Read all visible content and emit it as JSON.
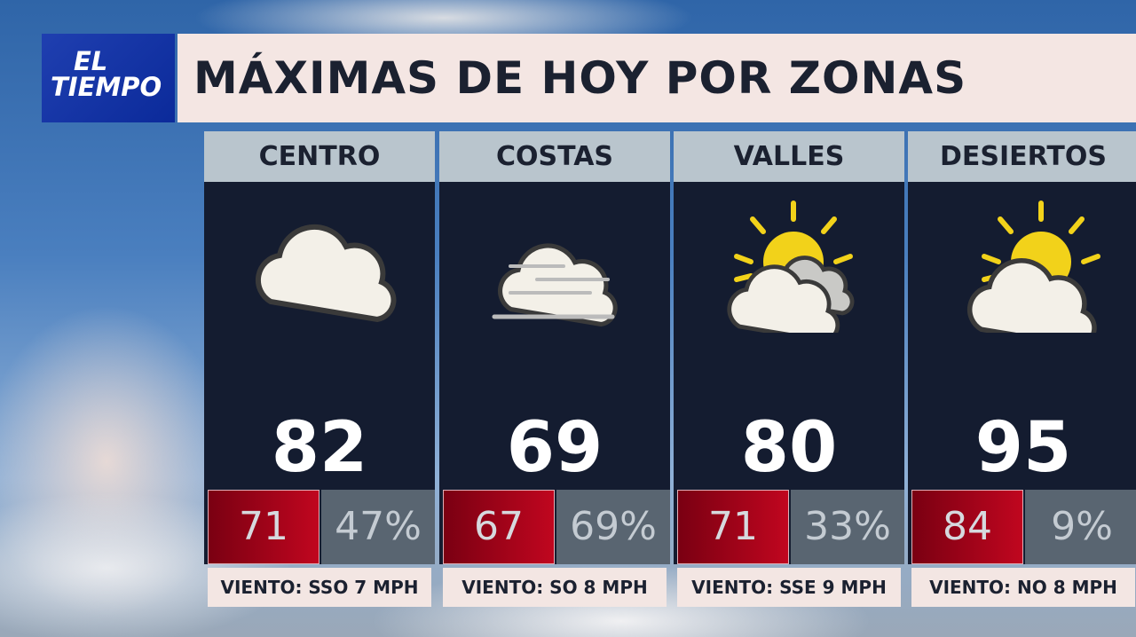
{
  "logo": {
    "line1": "EL",
    "line2": "TIEMPO"
  },
  "title": "MÁXIMAS DE HOY POR ZONAS",
  "zones": [
    {
      "name": "CENTRO",
      "icon": "cloudy-icon",
      "high": "82",
      "low": "71",
      "humidity": "47%",
      "wind": "VIENTO: SSO 7 MPH"
    },
    {
      "name": "COSTAS",
      "icon": "fog-icon",
      "high": "69",
      "low": "67",
      "humidity": "69%",
      "wind": "VIENTO: SO 8 MPH"
    },
    {
      "name": "VALLES",
      "icon": "mostly-cloudy-icon",
      "high": "80",
      "low": "71",
      "humidity": "33%",
      "wind": "VIENTO: SSE 9 MPH"
    },
    {
      "name": "DESIERTOS",
      "icon": "partly-cloudy-icon",
      "high": "95",
      "low": "84",
      "humidity": "9%",
      "wind": "VIENTO: NO 8 MPH"
    }
  ],
  "colors": {
    "logo": "#1f3fb0",
    "title_bg": "#f4e6e3",
    "panel": "#141c30",
    "low_box": "#b00418",
    "humidity_box": "#596571",
    "sun": "#f2d21a"
  }
}
